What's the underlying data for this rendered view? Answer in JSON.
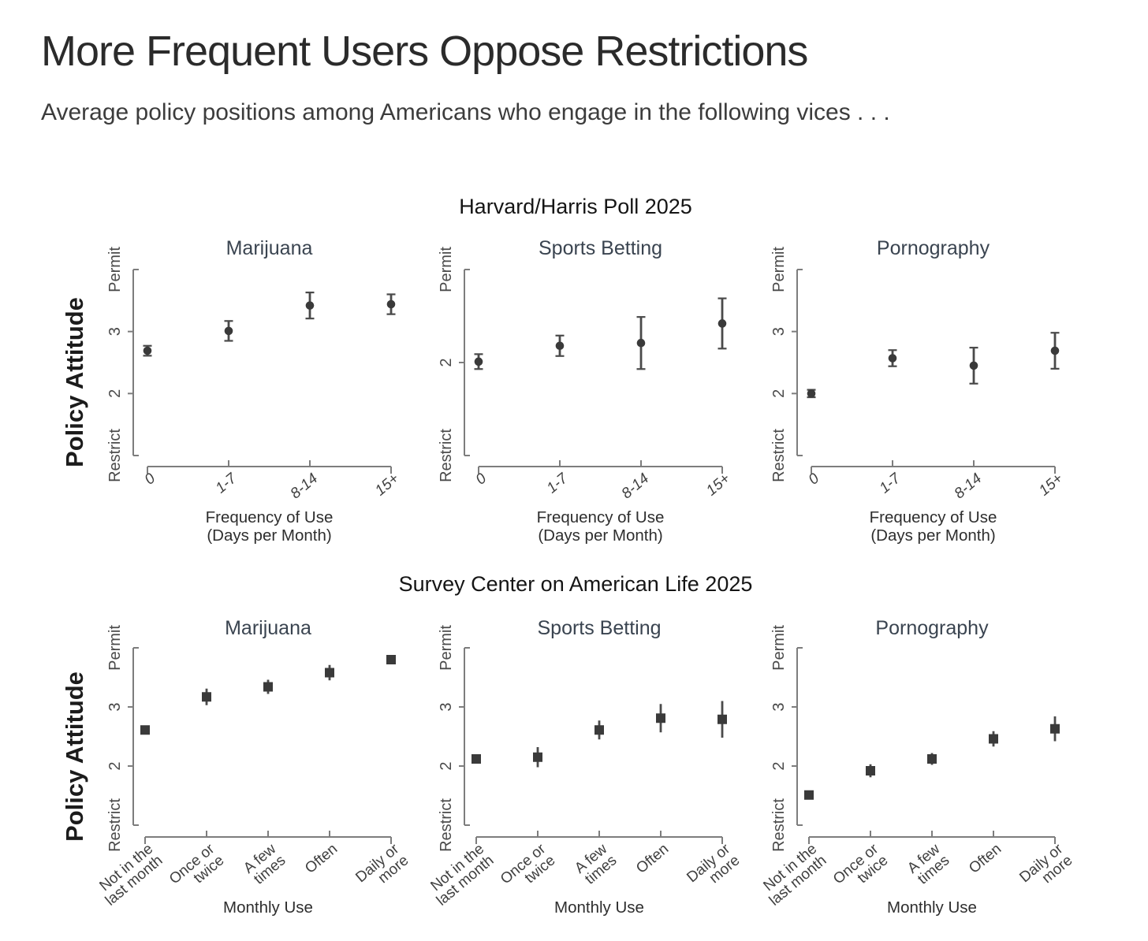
{
  "page": {
    "title": "More Frequent Users Oppose Restrictions",
    "subtitle": "Average policy positions among Americans who engage in the following vices . . ."
  },
  "sections": [
    {
      "title": "Harvard/Harris Poll 2025"
    },
    {
      "title": "Survey Center on American Life 2025"
    }
  ],
  "ylabel": "Policy Attitude",
  "colors": {
    "marker": "#3a3a3a",
    "error_bar": "#4a4a4a",
    "axis": "#7d7d7d",
    "panel_title": "#3a4450",
    "heading": "#2b2b2b"
  },
  "chart_data": [
    {
      "type": "scatter",
      "group": "Harvard/Harris Poll 2025",
      "title": "Marijuana",
      "marker": "circle",
      "error_caps": true,
      "italic_xticks": true,
      "ylim": [
        1,
        4
      ],
      "yticks": [
        {
          "value": 1,
          "label": "Restrict"
        },
        {
          "value": 2,
          "label": "2"
        },
        {
          "value": 3,
          "label": "3"
        },
        {
          "value": 4,
          "label": "Permit"
        }
      ],
      "categories": [
        [
          "0"
        ],
        [
          "1-7"
        ],
        [
          "8-14"
        ],
        [
          "15+"
        ]
      ],
      "xlabel_lines": [
        "Frequency of Use",
        "(Days per Month)"
      ],
      "values": [
        2.69,
        3.01,
        3.42,
        3.44
      ],
      "errors": [
        0.08,
        0.16,
        0.21,
        0.16
      ]
    },
    {
      "type": "scatter",
      "group": "Harvard/Harris Poll 2025",
      "title": "Sports Betting",
      "marker": "circle",
      "error_caps": true,
      "italic_xticks": true,
      "ylim": [
        1,
        3
      ],
      "yticks": [
        {
          "value": 1,
          "label": "Restrict"
        },
        {
          "value": 2,
          "label": "2"
        },
        {
          "value": 3,
          "label": "Permit"
        }
      ],
      "categories": [
        [
          "0"
        ],
        [
          "1-7"
        ],
        [
          "8-14"
        ],
        [
          "15+"
        ]
      ],
      "xlabel_lines": [
        "Frequency of Use",
        "(Days per Month)"
      ],
      "values": [
        2.01,
        2.18,
        2.21,
        2.42
      ],
      "errors": [
        0.08,
        0.11,
        0.28,
        0.27
      ]
    },
    {
      "type": "scatter",
      "group": "Harvard/Harris Poll 2025",
      "title": "Pornography",
      "marker": "circle",
      "error_caps": true,
      "italic_xticks": true,
      "ylim": [
        1,
        4
      ],
      "yticks": [
        {
          "value": 1,
          "label": "Restrict"
        },
        {
          "value": 2,
          "label": "2"
        },
        {
          "value": 3,
          "label": "3"
        },
        {
          "value": 4,
          "label": "Permit"
        }
      ],
      "categories": [
        [
          "0"
        ],
        [
          "1-7"
        ],
        [
          "8-14"
        ],
        [
          "15+"
        ]
      ],
      "xlabel_lines": [
        "Frequency of Use",
        "(Days per Month)"
      ],
      "values": [
        2.0,
        2.57,
        2.45,
        2.69
      ],
      "errors": [
        0.06,
        0.13,
        0.29,
        0.29
      ]
    },
    {
      "type": "scatter",
      "group": "Survey Center on American Life 2025",
      "title": "Marijuana",
      "marker": "square",
      "error_caps": false,
      "italic_xticks": false,
      "ylim": [
        1,
        4
      ],
      "yticks": [
        {
          "value": 1,
          "label": "Restrict"
        },
        {
          "value": 2,
          "label": "2"
        },
        {
          "value": 3,
          "label": "3"
        },
        {
          "value": 4,
          "label": "Permit"
        }
      ],
      "categories": [
        [
          "Not  in the",
          "last month"
        ],
        [
          "Once or",
          "twice"
        ],
        [
          "A few",
          "times"
        ],
        [
          "Often"
        ],
        [
          "Daily or",
          "more"
        ]
      ],
      "xlabel_lines": [
        "Monthly Use"
      ],
      "values": [
        2.61,
        3.17,
        3.34,
        3.58,
        3.8
      ],
      "errors": [
        0.05,
        0.14,
        0.12,
        0.13,
        0.06
      ]
    },
    {
      "type": "scatter",
      "group": "Survey Center on American Life 2025",
      "title": "Sports Betting",
      "marker": "square",
      "error_caps": false,
      "italic_xticks": false,
      "ylim": [
        1,
        4
      ],
      "yticks": [
        {
          "value": 1,
          "label": "Restrict"
        },
        {
          "value": 2,
          "label": "2"
        },
        {
          "value": 3,
          "label": "3"
        },
        {
          "value": 4,
          "label": "Permit"
        }
      ],
      "categories": [
        [
          "Not  in the",
          "last month"
        ],
        [
          "Once or",
          "twice"
        ],
        [
          "A few",
          "times"
        ],
        [
          "Often"
        ],
        [
          "Daily or",
          "more"
        ]
      ],
      "xlabel_lines": [
        "Monthly Use"
      ],
      "values": [
        2.12,
        2.15,
        2.61,
        2.81,
        2.79
      ],
      "errors": [
        0.05,
        0.17,
        0.16,
        0.24,
        0.31
      ]
    },
    {
      "type": "scatter",
      "group": "Survey Center on American Life 2025",
      "title": "Pornography",
      "marker": "square",
      "error_caps": false,
      "italic_xticks": false,
      "ylim": [
        1,
        4
      ],
      "yticks": [
        {
          "value": 1,
          "label": "Restrict"
        },
        {
          "value": 2,
          "label": "2"
        },
        {
          "value": 3,
          "label": "3"
        },
        {
          "value": 4,
          "label": "Permit"
        }
      ],
      "categories": [
        [
          "Not  in the",
          "last month"
        ],
        [
          "Once or",
          "twice"
        ],
        [
          "A few",
          "times"
        ],
        [
          "Often"
        ],
        [
          "Daily or",
          "more"
        ]
      ],
      "xlabel_lines": [
        "Monthly Use"
      ],
      "values": [
        1.51,
        1.92,
        2.12,
        2.46,
        2.63
      ],
      "errors": [
        0.05,
        0.11,
        0.1,
        0.13,
        0.21
      ]
    }
  ]
}
